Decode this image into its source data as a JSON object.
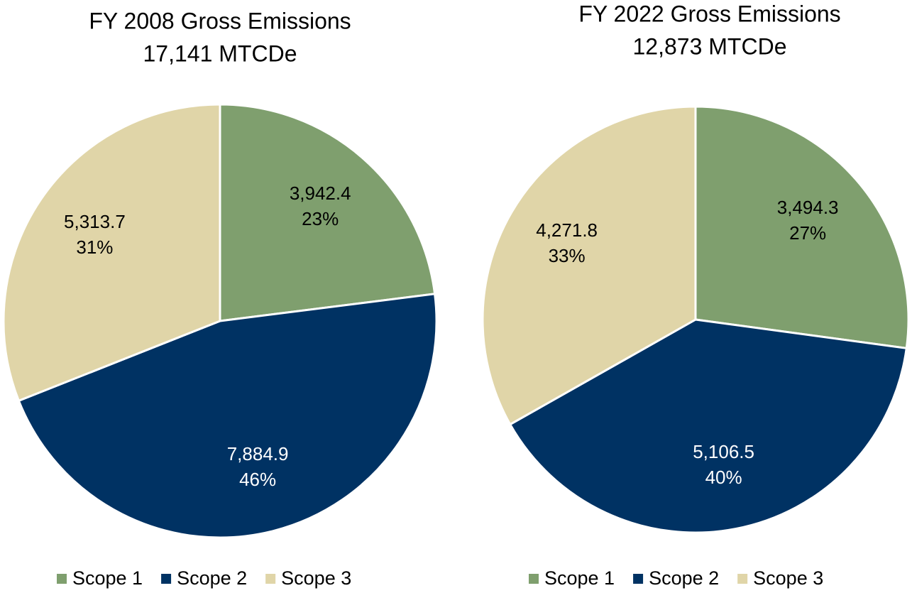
{
  "chart_data": [
    {
      "type": "pie",
      "title": "FY 2008 Gross Emissions",
      "subtitle": "17,141 MTCDe",
      "categories": [
        "Scope 1",
        "Scope 2",
        "Scope 3"
      ],
      "values": [
        3942.4,
        7884.9,
        5313.7
      ],
      "value_labels": [
        "3,942.4",
        "7,884.9",
        "5,313.7"
      ],
      "percents": [
        23,
        46,
        31
      ],
      "percent_labels": [
        "23%",
        "46%",
        "31%"
      ],
      "colors": [
        "#7f9f6e",
        "#003263",
        "#e0d5a8"
      ],
      "label_colors": [
        "#000000",
        "#ffffff",
        "#000000"
      ],
      "legend": "bottom"
    },
    {
      "type": "pie",
      "title": "FY 2022 Gross Emissions",
      "subtitle": "12,873 MTCDe",
      "categories": [
        "Scope 1",
        "Scope 2",
        "Scope 3"
      ],
      "values": [
        3494.3,
        5106.5,
        4271.8
      ],
      "value_labels": [
        "3,494.3",
        "5,106.5",
        "4,271.8"
      ],
      "percents": [
        27,
        40,
        33
      ],
      "percent_labels": [
        "27%",
        "40%",
        "33%"
      ],
      "colors": [
        "#7f9f6e",
        "#003263",
        "#e0d5a8"
      ],
      "label_colors": [
        "#000000",
        "#ffffff",
        "#000000"
      ],
      "legend": "bottom"
    }
  ]
}
